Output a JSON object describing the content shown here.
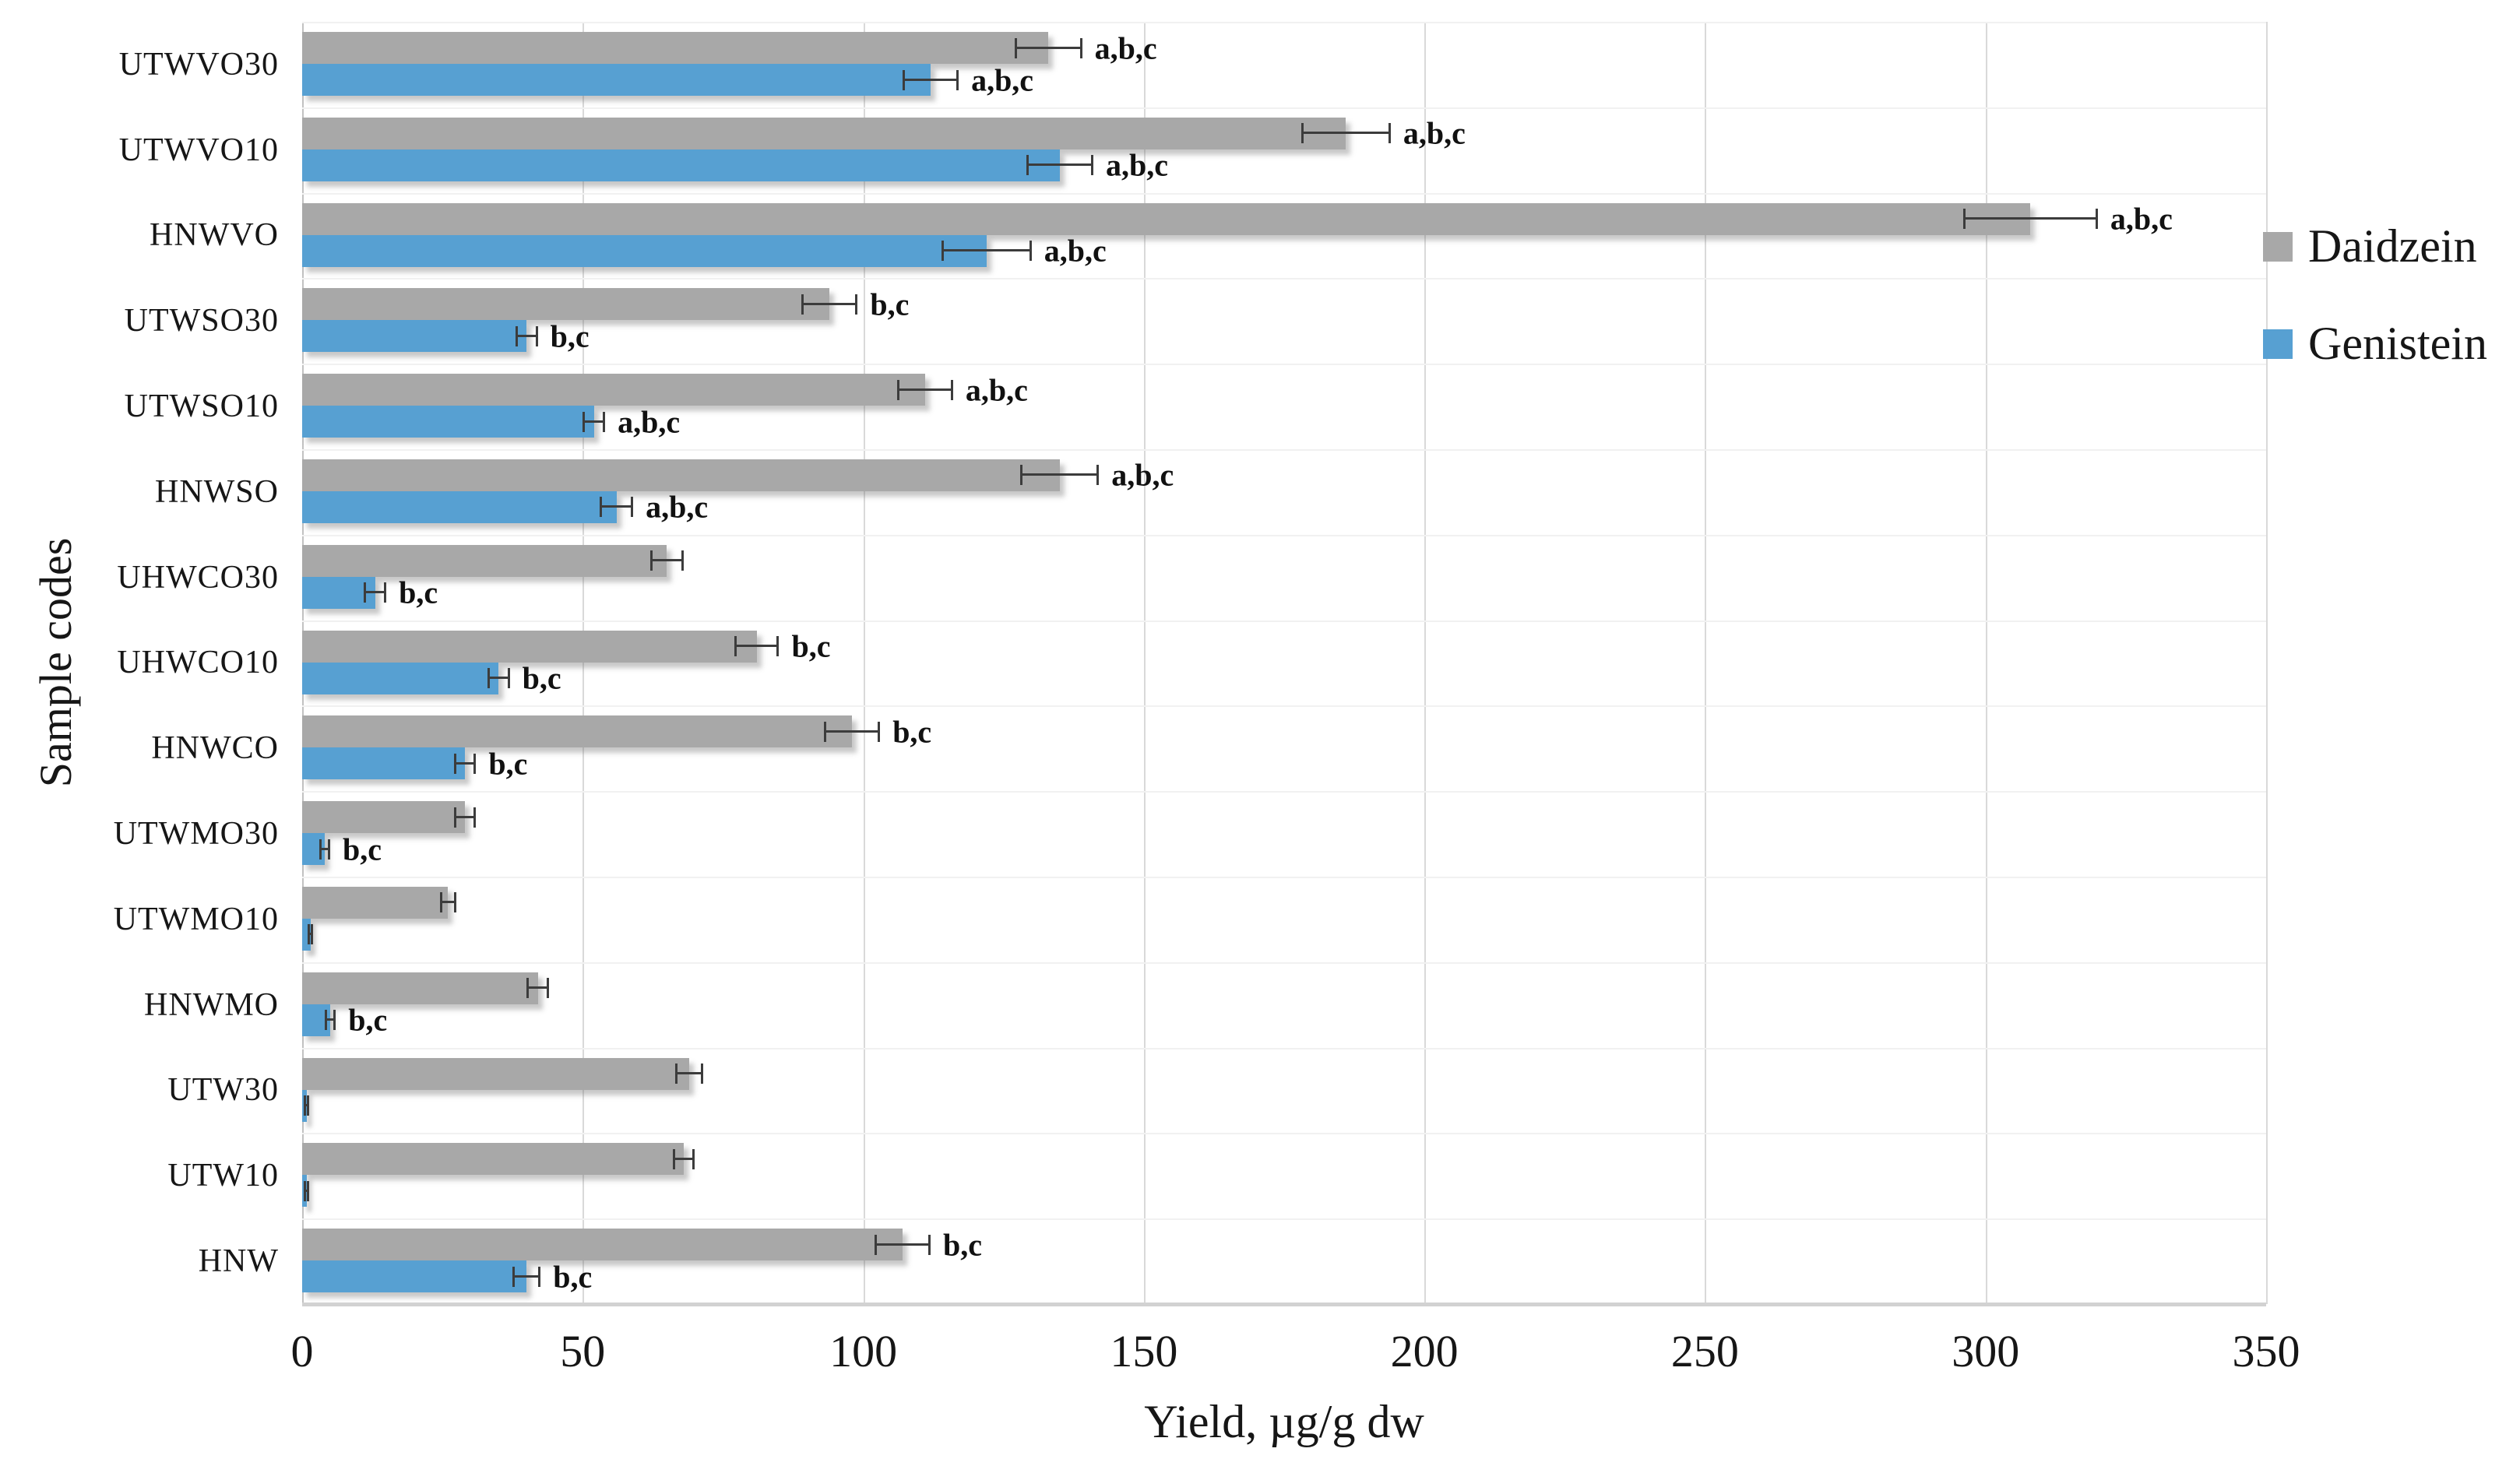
{
  "figure": {
    "x_axis_title": "Yield, µg/g dw",
    "y_axis_title": "Sample codes"
  },
  "chart_data": {
    "type": "bar",
    "orientation": "horizontal",
    "title": "",
    "xlabel": "Yield, µg/g dw",
    "ylabel": "Sample codes",
    "xlim": [
      0,
      350
    ],
    "xticks": [
      0,
      50,
      100,
      150,
      200,
      250,
      300,
      350
    ],
    "grid": "vertical gridlines every 50 units, faint horizontal category separators",
    "legend_position": "right",
    "categories": [
      "UTWVO30",
      "UTWVO10",
      "HNWVO",
      "UTWSO30",
      "UTWSO10",
      "HNWSO",
      "UHWCO30",
      "UHWCO10",
      "HNWCO",
      "UTWMO30",
      "UTWMO10",
      "HNWMO",
      "UTW30",
      "UTW10",
      "HNW"
    ],
    "series": [
      {
        "name": "Daidzein",
        "color": "#a8a8a8",
        "values": [
          133,
          186,
          308,
          94,
          111,
          135,
          65,
          81,
          98,
          29,
          26,
          42,
          69,
          68,
          107
        ],
        "errors": [
          6,
          8,
          12,
          5,
          5,
          7,
          3,
          4,
          5,
          2,
          1.5,
          2,
          2.5,
          2,
          5
        ],
        "annotations": [
          "a,b,c",
          "a,b,c",
          "a,b,c",
          "b,c",
          "a,b,c",
          "a,b,c",
          "",
          "b,c",
          "b,c",
          "",
          "",
          "",
          "",
          "",
          "b,c"
        ]
      },
      {
        "name": "Genistein",
        "color": "#57a0d2",
        "values": [
          112,
          135,
          122,
          40,
          52,
          56,
          13,
          35,
          29,
          4,
          1.5,
          5,
          0.8,
          0.8,
          40
        ],
        "errors": [
          5,
          6,
          8,
          2,
          2,
          3,
          2,
          2,
          2,
          1,
          0.5,
          1,
          0.5,
          0.5,
          2.5
        ],
        "annotations": [
          "a,b,c",
          "a,b,c",
          "a,b,c",
          "b,c",
          "a,b,c",
          "a,b,c",
          "b,c",
          "b,c",
          "b,c",
          "b,c",
          "",
          "b,c",
          "",
          "",
          "b,c"
        ]
      }
    ]
  }
}
